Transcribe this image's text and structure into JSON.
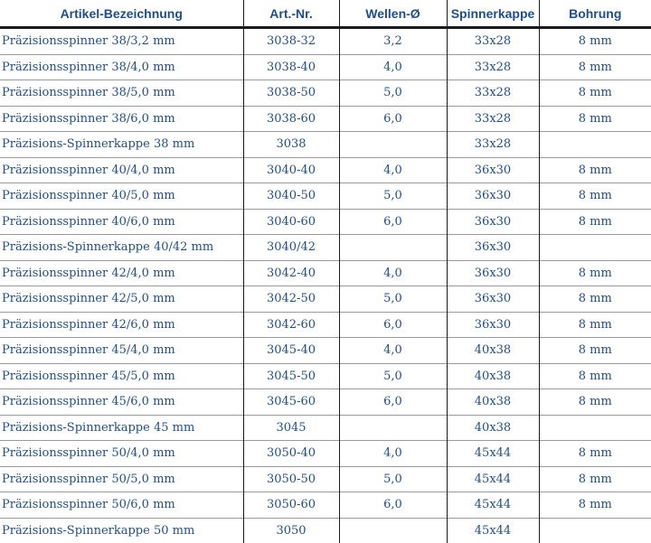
{
  "table": {
    "headers": [
      "Artikel-Bezeichnung",
      "Art.-Nr.",
      "Wellen-Ø",
      "Spinnerkappe",
      "Bohrung"
    ],
    "rows": [
      [
        "Präzisionsspinner 38/3,2 mm",
        "3038-32",
        "3,2",
        "33x28",
        "8 mm"
      ],
      [
        "Präzisionsspinner 38/4,0 mm",
        "3038-40",
        "4,0",
        "33x28",
        "8 mm"
      ],
      [
        "Präzisionsspinner 38/5,0 mm",
        "3038-50",
        "5,0",
        "33x28",
        "8 mm"
      ],
      [
        "Präzisionsspinner 38/6,0 mm",
        "3038-60",
        "6,0",
        "33x28",
        "8 mm"
      ],
      [
        "Präzisions-Spinnerkappe 38 mm",
        "3038",
        "",
        "33x28",
        ""
      ],
      [
        "Präzisionsspinner 40/4,0 mm",
        "3040-40",
        "4,0",
        "36x30",
        "8 mm"
      ],
      [
        "Präzisionsspinner 40/5,0 mm",
        "3040-50",
        "5,0",
        "36x30",
        "8 mm"
      ],
      [
        "Präzisionsspinner 40/6,0 mm",
        "3040-60",
        "6,0",
        "36x30",
        "8 mm"
      ],
      [
        "Präzisions-Spinnerkappe 40/42 mm",
        "3040/42",
        "",
        "36x30",
        ""
      ],
      [
        "Präzisionsspinner 42/4,0 mm",
        "3042-40",
        "4,0",
        "36x30",
        "8 mm"
      ],
      [
        "Präzisionsspinner 42/5,0 mm",
        "3042-50",
        "5,0",
        "36x30",
        "8 mm"
      ],
      [
        "Präzisionsspinner 42/6,0 mm",
        "3042-60",
        "6,0",
        "36x30",
        "8 mm"
      ],
      [
        "Präzisionsspinner 45/4,0 mm",
        "3045-40",
        "4,0",
        "40x38",
        "8 mm"
      ],
      [
        "Präzisionsspinner 45/5,0 mm",
        "3045-50",
        "5,0",
        "40x38",
        "8 mm"
      ],
      [
        "Präzisionsspinner 45/6,0 mm",
        "3045-60",
        "6,0",
        "40x38",
        "8 mm"
      ],
      [
        "Präzisions-Spinnerkappe 45 mm",
        "3045",
        "",
        "40x38",
        ""
      ],
      [
        "Präzisionsspinner 50/4,0 mm",
        "3050-40",
        "4,0",
        "45x44",
        "8 mm"
      ],
      [
        "Präzisionsspinner 50/5,0 mm",
        "3050-50",
        "5,0",
        "45x44",
        "8 mm"
      ],
      [
        "Präzisionsspinner 50/6,0 mm",
        "3050-60",
        "6,0",
        "45x44",
        "8 mm"
      ],
      [
        "Präzisions-Spinnerkappe 50 mm",
        "3050",
        "",
        "45x44",
        ""
      ]
    ]
  }
}
